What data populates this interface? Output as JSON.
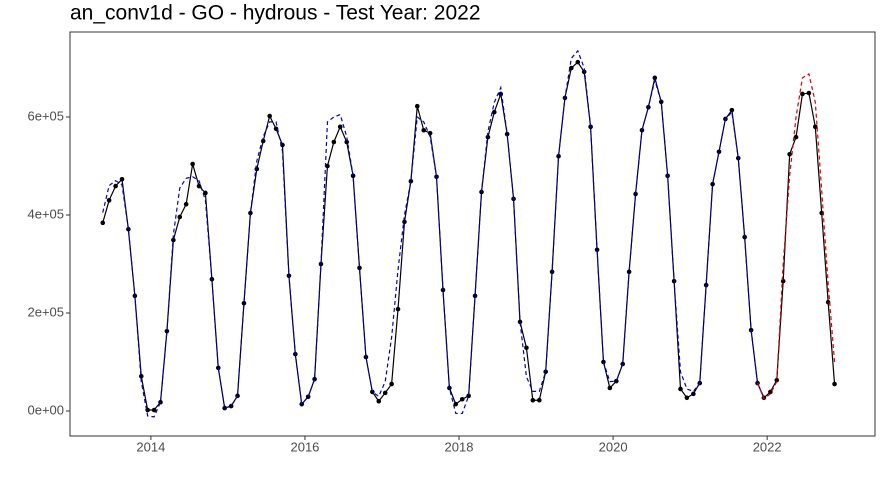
{
  "chart_data": {
    "type": "line",
    "title": "an_conv1d - GO - hydrous - Test Year: 2022",
    "x": [
      2013.375,
      2013.458,
      2013.542,
      2013.625,
      2013.708,
      2013.792,
      2013.875,
      2013.958,
      2014.042,
      2014.125,
      2014.208,
      2014.292,
      2014.375,
      2014.458,
      2014.542,
      2014.625,
      2014.708,
      2014.792,
      2014.875,
      2014.958,
      2015.042,
      2015.125,
      2015.208,
      2015.292,
      2015.375,
      2015.458,
      2015.542,
      2015.625,
      2015.708,
      2015.792,
      2015.875,
      2015.958,
      2016.042,
      2016.125,
      2016.208,
      2016.292,
      2016.375,
      2016.458,
      2016.542,
      2016.625,
      2016.708,
      2016.792,
      2016.875,
      2016.958,
      2017.042,
      2017.125,
      2017.208,
      2017.292,
      2017.375,
      2017.458,
      2017.542,
      2017.625,
      2017.708,
      2017.792,
      2017.875,
      2017.958,
      2018.042,
      2018.125,
      2018.208,
      2018.292,
      2018.375,
      2018.458,
      2018.542,
      2018.625,
      2018.708,
      2018.792,
      2018.875,
      2018.958,
      2019.042,
      2019.125,
      2019.208,
      2019.292,
      2019.375,
      2019.458,
      2019.542,
      2019.625,
      2019.708,
      2019.792,
      2019.875,
      2019.958,
      2020.042,
      2020.125,
      2020.208,
      2020.292,
      2020.375,
      2020.458,
      2020.542,
      2020.625,
      2020.708,
      2020.792,
      2020.875,
      2020.958,
      2021.042,
      2021.125,
      2021.208,
      2021.292,
      2021.375,
      2021.458,
      2021.542,
      2021.625,
      2021.708,
      2021.792,
      2021.875,
      2021.958,
      2022.042,
      2022.125,
      2022.208,
      2022.292,
      2022.375,
      2022.458,
      2022.542,
      2022.625,
      2022.708,
      2022.792,
      2022.875
    ],
    "series": [
      {
        "color": "#000000",
        "dashed": false,
        "points": true,
        "values": [
          384000,
          430000,
          459000,
          473000,
          371000,
          235000,
          71000,
          2000,
          2000,
          18000,
          163000,
          349000,
          396000,
          422000,
          504000,
          459000,
          445000,
          269000,
          88000,
          6000,
          10000,
          31000,
          220000,
          404000,
          494000,
          551000,
          602000,
          576000,
          543000,
          276000,
          116000,
          14000,
          29000,
          65000,
          300000,
          500000,
          549000,
          580000,
          549000,
          480000,
          292000,
          110000,
          39000,
          20000,
          37000,
          55000,
          208000,
          386000,
          469000,
          622000,
          573000,
          567000,
          478000,
          247000,
          47000,
          14000,
          24000,
          31000,
          235000,
          447000,
          559000,
          610000,
          647000,
          565000,
          433000,
          182000,
          129000,
          22000,
          22000,
          80000,
          284000,
          520000,
          639000,
          700000,
          712000,
          692000,
          580000,
          329000,
          100000,
          47000,
          61000,
          96000,
          284000,
          443000,
          573000,
          620000,
          680000,
          631000,
          480000,
          265000,
          45000,
          27000,
          35000,
          57000,
          257000,
          463000,
          529000,
          596000,
          614000,
          516000,
          355000,
          165000,
          57000,
          27000,
          39000,
          63000,
          265000,
          524000,
          559000,
          647000,
          649000,
          580000,
          404000,
          222000,
          55000
        ]
      },
      {
        "color": "#0000cc",
        "dashed": true,
        "points": false,
        "values": [
          405000,
          460000,
          470000,
          462000,
          371000,
          235000,
          60000,
          -10000,
          -12000,
          18000,
          163000,
          360000,
          455000,
          475000,
          478000,
          470000,
          430000,
          269000,
          88000,
          6000,
          10000,
          31000,
          220000,
          404000,
          510000,
          560000,
          590000,
          590000,
          530000,
          276000,
          116000,
          14000,
          29000,
          65000,
          300000,
          590000,
          600000,
          605000,
          560000,
          480000,
          292000,
          110000,
          39000,
          30000,
          60000,
          150000,
          288000,
          400000,
          469000,
          600000,
          590000,
          560000,
          478000,
          247000,
          47000,
          -5000,
          -5000,
          31000,
          235000,
          447000,
          570000,
          630000,
          660000,
          565000,
          433000,
          182000,
          70000,
          40000,
          40000,
          80000,
          284000,
          520000,
          639000,
          720000,
          735000,
          700000,
          580000,
          329000,
          100000,
          60000,
          61000,
          96000,
          284000,
          443000,
          573000,
          620000,
          675000,
          631000,
          480000,
          265000,
          80000,
          45000,
          40000,
          57000,
          257000,
          463000,
          529000,
          596000,
          610000,
          516000,
          355000,
          165000,
          57000,
          27000,
          null,
          null,
          null,
          null,
          null,
          null,
          null,
          null,
          null,
          null,
          null
        ]
      },
      {
        "color": "#e00000",
        "dashed": true,
        "points": false,
        "values": [
          null,
          null,
          null,
          null,
          null,
          null,
          null,
          null,
          null,
          null,
          null,
          null,
          null,
          null,
          null,
          null,
          null,
          null,
          null,
          null,
          null,
          null,
          null,
          null,
          null,
          null,
          null,
          null,
          null,
          null,
          null,
          null,
          null,
          null,
          null,
          null,
          null,
          null,
          null,
          null,
          null,
          null,
          null,
          null,
          null,
          null,
          null,
          null,
          null,
          null,
          null,
          null,
          null,
          null,
          null,
          null,
          null,
          null,
          null,
          null,
          null,
          null,
          null,
          null,
          null,
          null,
          null,
          null,
          null,
          null,
          null,
          null,
          null,
          null,
          null,
          null,
          null,
          null,
          null,
          null,
          null,
          null,
          null,
          null,
          null,
          null,
          null,
          null,
          null,
          null,
          null,
          null,
          null,
          null,
          null,
          null,
          null,
          null,
          null,
          null,
          null,
          null,
          57000,
          25000,
          35000,
          60000,
          300000,
          480000,
          600000,
          680000,
          688000,
          630000,
          450000,
          260000,
          100000
        ]
      }
    ],
    "xlim": [
      2012.95,
      2023.4
    ],
    "ylim": [
      -51000,
      773500
    ],
    "xticks": [
      2014,
      2016,
      2018,
      2020,
      2022
    ],
    "yticks": [
      {
        "value": 0,
        "label": "0e+00"
      },
      {
        "value": 200000,
        "label": "2e+05"
      },
      {
        "value": 400000,
        "label": "4e+05"
      },
      {
        "value": 600000,
        "label": "6e+05"
      }
    ],
    "grid": false
  }
}
